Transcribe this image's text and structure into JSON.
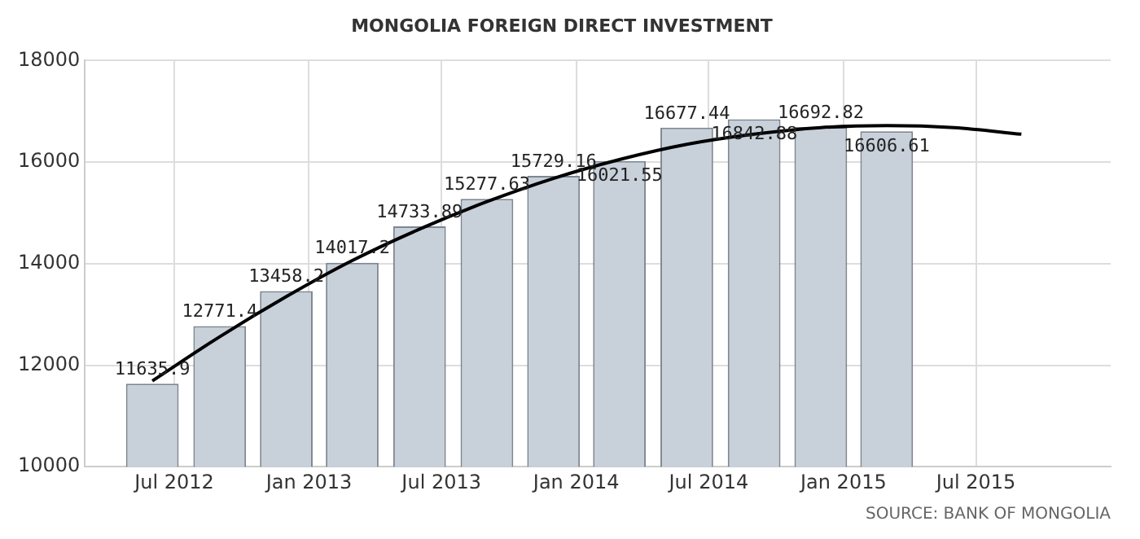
{
  "chart_data": {
    "type": "bar",
    "title": "MONGOLIA FOREIGN DIRECT INVESTMENT",
    "x": [
      "2012-06",
      "2012-09",
      "2012-12",
      "2013-03",
      "2013-06",
      "2013-09",
      "2013-12",
      "2014-03",
      "2014-06",
      "2014-09",
      "2014-12",
      "2015-03"
    ],
    "series": [
      {
        "color": "#c8d0da",
        "values": [
          11635.9,
          12771.4,
          13458.2,
          14017.2,
          14733.89,
          15277.63,
          15729.16,
          16021.55,
          16677.44,
          16842.88,
          16692.82,
          16606.61
        ],
        "value_labels": [
          "11635.9",
          "12771.4",
          "13458.2",
          "14017.2",
          "14733.89",
          "15277.63",
          "15729.16",
          "16021.55",
          "16677.44",
          "16842.88",
          "16692.82",
          "16606.61"
        ]
      },
      {
        "type": "line",
        "color": "#000000",
        "x": [
          "2012-06",
          "2012-09",
          "2012-12",
          "2013-03",
          "2013-06",
          "2013-09",
          "2013-12",
          "2014-03",
          "2014-06",
          "2014-09",
          "2014-12",
          "2015-03",
          "2015-06",
          "2015-09"
        ],
        "values": [
          11690,
          12560,
          13350,
          14060,
          14680,
          15220,
          15680,
          16050,
          16350,
          16550,
          16680,
          16720,
          16680,
          16550
        ]
      }
    ],
    "xlim": [
      "2012-03",
      "2016-01"
    ],
    "xticks": [
      {
        "value": "2012-07",
        "label": "Jul 2012"
      },
      {
        "value": "2013-01",
        "label": "Jan 2013"
      },
      {
        "value": "2013-07",
        "label": "Jul 2013"
      },
      {
        "value": "2014-01",
        "label": "Jan 2014"
      },
      {
        "value": "2014-07",
        "label": "Jul 2014"
      },
      {
        "value": "2015-01",
        "label": "Jan 2015"
      },
      {
        "value": "2015-07",
        "label": "Jul 2015"
      }
    ],
    "ylim": [
      10000,
      18000
    ],
    "yticks": [
      10000,
      12000,
      14000,
      16000,
      18000
    ],
    "grid": true,
    "legend": false,
    "marker": "none",
    "line_style": "solid",
    "annotations": [
      "SOURCE: BANK OF MONGOLIA"
    ]
  }
}
